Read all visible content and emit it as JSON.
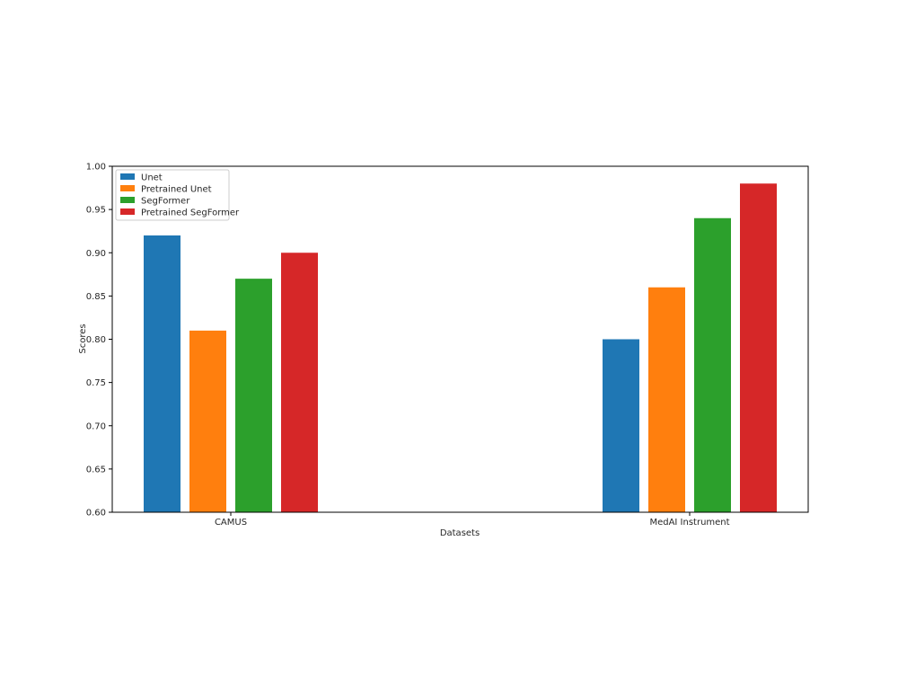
{
  "chart_data": {
    "type": "bar",
    "xlabel": "Datasets",
    "ylabel": "Scores",
    "ylim": [
      0.6,
      1.0
    ],
    "yticks": [
      0.6,
      0.65,
      0.7,
      0.75,
      0.8,
      0.85,
      0.9,
      0.95,
      1.0
    ],
    "categories": [
      "CAMUS",
      "MedAI Instrument"
    ],
    "legend_position": "top-left",
    "grid": false,
    "series": [
      {
        "name": "Unet",
        "color": "#1f77b4",
        "values": [
          0.92,
          0.8
        ]
      },
      {
        "name": "Pretrained Unet",
        "color": "#ff7f0e",
        "values": [
          0.81,
          0.86
        ]
      },
      {
        "name": "SegFormer",
        "color": "#2ca02c",
        "values": [
          0.87,
          0.94
        ]
      },
      {
        "name": "Pretrained SegFormer",
        "color": "#d62728",
        "values": [
          0.9,
          0.98
        ]
      }
    ]
  }
}
